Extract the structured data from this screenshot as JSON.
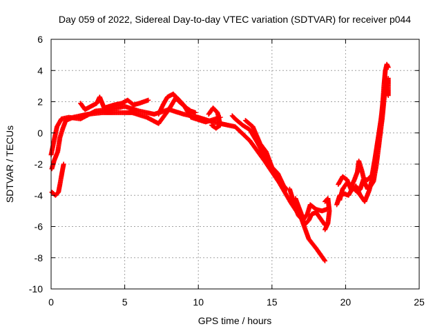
{
  "chart_data": {
    "type": "scatter",
    "title": "Day 059 of 2022, Sidereal Day-to-day VTEC variation (SDTVAR) for receiver p044",
    "xlabel": "GPS time / hours",
    "ylabel": "SDTVAR / TECUs",
    "xlim": [
      0,
      25
    ],
    "ylim": [
      -10,
      6
    ],
    "xticks": [
      0,
      5,
      10,
      15,
      20,
      25
    ],
    "yticks": [
      -10,
      -8,
      -6,
      -4,
      -2,
      0,
      2,
      4,
      6
    ],
    "grid": true,
    "marker": "+",
    "series": [
      {
        "name": "SDTVAR",
        "color": "#ff0000",
        "tracks": [
          [
            [
              0.0,
              -1.4
            ],
            [
              0.2,
              -0.5
            ],
            [
              0.4,
              0.4
            ],
            [
              0.7,
              0.9
            ],
            [
              1.2,
              1.0
            ],
            [
              2.0,
              0.9
            ],
            [
              3.0,
              1.4
            ],
            [
              4.0,
              1.5
            ],
            [
              5.0,
              1.7
            ],
            [
              6.0,
              1.4
            ],
            [
              7.0,
              1.2
            ],
            [
              8.0,
              1.5
            ],
            [
              9.0,
              1.2
            ],
            [
              10.0,
              1.0
            ],
            [
              11.0,
              0.7
            ],
            [
              12.5,
              0.4
            ],
            [
              13.5,
              -0.5
            ],
            [
              14.5,
              -1.8
            ],
            [
              15.5,
              -3.2
            ],
            [
              16.3,
              -4.5
            ],
            [
              17.0,
              -5.5
            ],
            [
              17.5,
              -6.8
            ],
            [
              18.0,
              -7.4
            ],
            [
              18.6,
              -8.2
            ]
          ],
          [
            [
              0.05,
              -2.3
            ],
            [
              0.2,
              -1.8
            ],
            [
              0.45,
              -1.2
            ],
            [
              0.6,
              -0.3
            ],
            [
              0.8,
              0.3
            ],
            [
              1.0,
              0.8
            ],
            [
              1.5,
              1.0
            ],
            [
              2.5,
              1.2
            ],
            [
              3.5,
              1.3
            ],
            [
              4.5,
              1.3
            ],
            [
              5.5,
              1.3
            ],
            [
              6.5,
              1.0
            ],
            [
              7.3,
              0.6
            ],
            [
              8.0,
              1.5
            ],
            [
              8.5,
              2.3
            ],
            [
              9.0,
              1.8
            ],
            [
              9.5,
              1.0
            ],
            [
              10.5,
              0.7
            ],
            [
              11.5,
              1.0
            ]
          ],
          [
            [
              0.05,
              -3.8
            ],
            [
              0.3,
              -4.0
            ],
            [
              0.5,
              -3.8
            ],
            [
              0.6,
              -3.3
            ],
            [
              0.75,
              -2.5
            ],
            [
              0.85,
              -2.0
            ]
          ],
          [
            [
              7.3,
              1.2
            ],
            [
              7.6,
              1.8
            ],
            [
              7.9,
              2.3
            ],
            [
              8.3,
              2.5
            ],
            [
              8.7,
              2.0
            ],
            [
              9.2,
              1.6
            ],
            [
              9.5,
              1.4
            ],
            [
              9.8,
              1.3
            ]
          ],
          [
            [
              10.7,
              1.2
            ],
            [
              11.0,
              1.6
            ],
            [
              11.3,
              1.3
            ],
            [
              11.5,
              0.5
            ],
            [
              11.2,
              0.3
            ],
            [
              10.9,
              0.5
            ]
          ],
          [
            [
              2.0,
              1.9
            ],
            [
              2.3,
              1.5
            ],
            [
              2.7,
              1.7
            ],
            [
              3.1,
              1.9
            ],
            [
              3.3,
              2.3
            ],
            [
              3.6,
              1.6
            ],
            [
              4.3,
              1.8
            ],
            [
              4.8,
              1.9
            ],
            [
              5.2,
              2.1
            ],
            [
              5.6,
              1.8
            ],
            [
              6.0,
              1.9
            ],
            [
              6.6,
              2.1
            ]
          ],
          [
            [
              12.3,
              1.1
            ],
            [
              12.5,
              0.9
            ],
            [
              13.0,
              0.5
            ],
            [
              13.5,
              0.2
            ],
            [
              14.0,
              -0.6
            ],
            [
              14.4,
              -1.3
            ],
            [
              14.8,
              -2.0
            ],
            [
              15.2,
              -2.7
            ],
            [
              15.6,
              -3.2
            ],
            [
              16.0,
              -3.6
            ]
          ],
          [
            [
              13.2,
              0.8
            ],
            [
              13.7,
              0.4
            ],
            [
              14.2,
              -0.7
            ],
            [
              14.6,
              -1.2
            ],
            [
              15.0,
              -2.2
            ],
            [
              15.4,
              -2.6
            ],
            [
              15.8,
              -3.4
            ]
          ],
          [
            [
              16.2,
              -3.6
            ],
            [
              16.4,
              -4.2
            ],
            [
              16.6,
              -4.8
            ],
            [
              16.8,
              -5.3
            ],
            [
              17.1,
              -5.6
            ],
            [
              17.4,
              -5.2
            ],
            [
              17.6,
              -4.6
            ],
            [
              18.0,
              -4.9
            ],
            [
              18.4,
              -5.0
            ],
            [
              18.7,
              -4.9
            ]
          ],
          [
            [
              16.6,
              -4.2
            ],
            [
              16.8,
              -4.7
            ],
            [
              17.0,
              -5.2
            ],
            [
              17.2,
              -5.9
            ],
            [
              17.5,
              -5.6
            ],
            [
              17.7,
              -5.2
            ],
            [
              18.0,
              -5.1
            ],
            [
              18.3,
              -5.5
            ],
            [
              18.6,
              -5.9
            ]
          ],
          [
            [
              18.6,
              -4.4
            ],
            [
              18.8,
              -4.2
            ],
            [
              18.9,
              -5.0
            ],
            [
              18.8,
              -5.8
            ],
            [
              18.6,
              -6.2
            ]
          ],
          [
            [
              19.6,
              -4.3
            ],
            [
              19.8,
              -3.6
            ],
            [
              20.1,
              -3.2
            ],
            [
              20.4,
              -3.4
            ],
            [
              20.6,
              -3.0
            ],
            [
              20.8,
              -2.5
            ],
            [
              20.9,
              -1.8
            ],
            [
              21.1,
              -2.4
            ],
            [
              21.3,
              -3.2
            ],
            [
              21.5,
              -3.6
            ],
            [
              21.7,
              -3.4
            ],
            [
              21.9,
              -3.1
            ],
            [
              22.1,
              -2.0
            ],
            [
              22.3,
              -0.5
            ],
            [
              22.5,
              1.0
            ],
            [
              22.6,
              2.0
            ],
            [
              22.7,
              3.0
            ],
            [
              22.8,
              3.5
            ]
          ],
          [
            [
              19.5,
              -3.3
            ],
            [
              19.8,
              -2.8
            ],
            [
              20.1,
              -3.0
            ],
            [
              20.4,
              -3.7
            ],
            [
              20.7,
              -3.4
            ],
            [
              21.0,
              -4.0
            ],
            [
              21.3,
              -4.4
            ],
            [
              21.6,
              -3.7
            ],
            [
              21.9,
              -2.6
            ],
            [
              22.1,
              -1.2
            ],
            [
              22.3,
              0.2
            ],
            [
              22.5,
              1.5
            ],
            [
              22.6,
              3.0
            ],
            [
              22.7,
              4.0
            ],
            [
              22.8,
              4.4
            ],
            [
              22.9,
              4.2
            ]
          ],
          [
            [
              19.4,
              -4.6
            ],
            [
              19.6,
              -4.0
            ],
            [
              19.9,
              -3.9
            ],
            [
              20.2,
              -4.0
            ],
            [
              20.5,
              -3.5
            ],
            [
              20.8,
              -3.8
            ],
            [
              21.0,
              -3.6
            ],
            [
              21.2,
              -3.0
            ],
            [
              21.5,
              -3.0
            ],
            [
              21.8,
              -2.7
            ],
            [
              22.0,
              -1.6
            ],
            [
              22.2,
              -0.4
            ],
            [
              22.4,
              0.8
            ],
            [
              22.55,
              2.2
            ],
            [
              22.7,
              2.8
            ],
            [
              22.9,
              2.4
            ],
            [
              22.9,
              3.5
            ]
          ]
        ]
      }
    ]
  }
}
